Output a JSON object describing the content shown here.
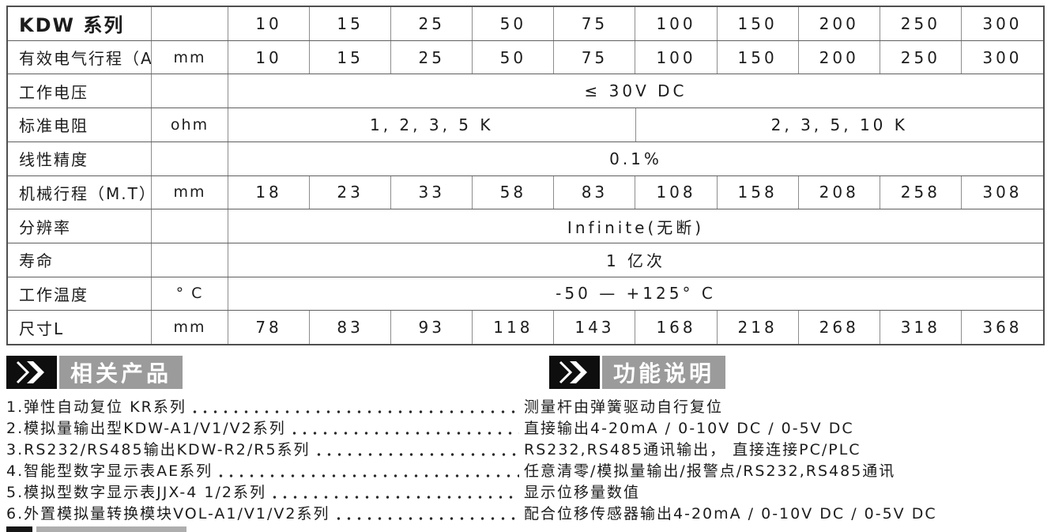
{
  "table": {
    "rows": [
      {
        "label": "KDW 系列",
        "unit": "",
        "type": "values",
        "header": true,
        "values": [
          "10",
          "15",
          "25",
          "50",
          "75",
          "100",
          "150",
          "200",
          "250",
          "300"
        ]
      },
      {
        "label": "有效电气行程（AE）",
        "unit": "mm",
        "type": "values",
        "values": [
          "10",
          "15",
          "25",
          "50",
          "75",
          "100",
          "150",
          "200",
          "250",
          "300"
        ]
      },
      {
        "label": "工作电压",
        "unit": "",
        "type": "span",
        "text": "≤ 30V DC"
      },
      {
        "label": "标准电阻",
        "unit": "ohm",
        "type": "span2",
        "left": "1, 2, 3, 5 K",
        "right": "2, 3, 5, 10 K"
      },
      {
        "label": "线性精度",
        "unit": "",
        "type": "span",
        "text": "0.1%"
      },
      {
        "label": "机械行程（M.T）",
        "unit": "mm",
        "type": "values",
        "values": [
          "18",
          "23",
          "33",
          "58",
          "83",
          "108",
          "158",
          "208",
          "258",
          "308"
        ]
      },
      {
        "label": "分辨率",
        "unit": "",
        "type": "span",
        "text": "Infinite(无断)"
      },
      {
        "label": "寿命",
        "unit": "",
        "type": "span",
        "text": "1 亿次"
      },
      {
        "label": "工作温度",
        "unit": "° C",
        "type": "span",
        "text": "-50 — +125° C"
      },
      {
        "label": "尺寸L",
        "unit": "mm",
        "type": "values",
        "values": [
          "78",
          "83",
          "93",
          "118",
          "143",
          "168",
          "218",
          "268",
          "318",
          "368"
        ]
      }
    ]
  },
  "badges": {
    "related_products_label": "相关产品",
    "function_description_label": "功能说明"
  },
  "spec_list": {
    "items": [
      {
        "left": "1.弹性自动复位 KR系列",
        "right": "测量杆由弹簧驱动自行复位"
      },
      {
        "left": "2.模拟量输出型KDW-A1/V1/V2系列",
        "right": "直接输出4-20mA / 0-10V DC / 0-5V DC"
      },
      {
        "left": "3.RS232/RS485输出KDW-R2/R5系列",
        "right": "RS232,RS485通讯输出， 直接连接PC/PLC"
      },
      {
        "left": "4.智能型数字显示表AE系列",
        "right": "任意清零/模拟量输出/报警点/RS232,RS485通讯"
      },
      {
        "left": "5.模拟型数字显示表JJX-4 1/2系列",
        "right": "显示位移量数值"
      },
      {
        "left": "6.外置模拟量转换模块VOL-A1/V1/V2系列",
        "right": "配合位移传感器输出4-20mA / 0-10V DC / 0-5V DC"
      }
    ]
  },
  "colors": {
    "badge_black": "#0e0e0e",
    "badge_gray": "#9b9b9b",
    "text": "#1c1c1c",
    "table_border": "#5f5f5f"
  }
}
